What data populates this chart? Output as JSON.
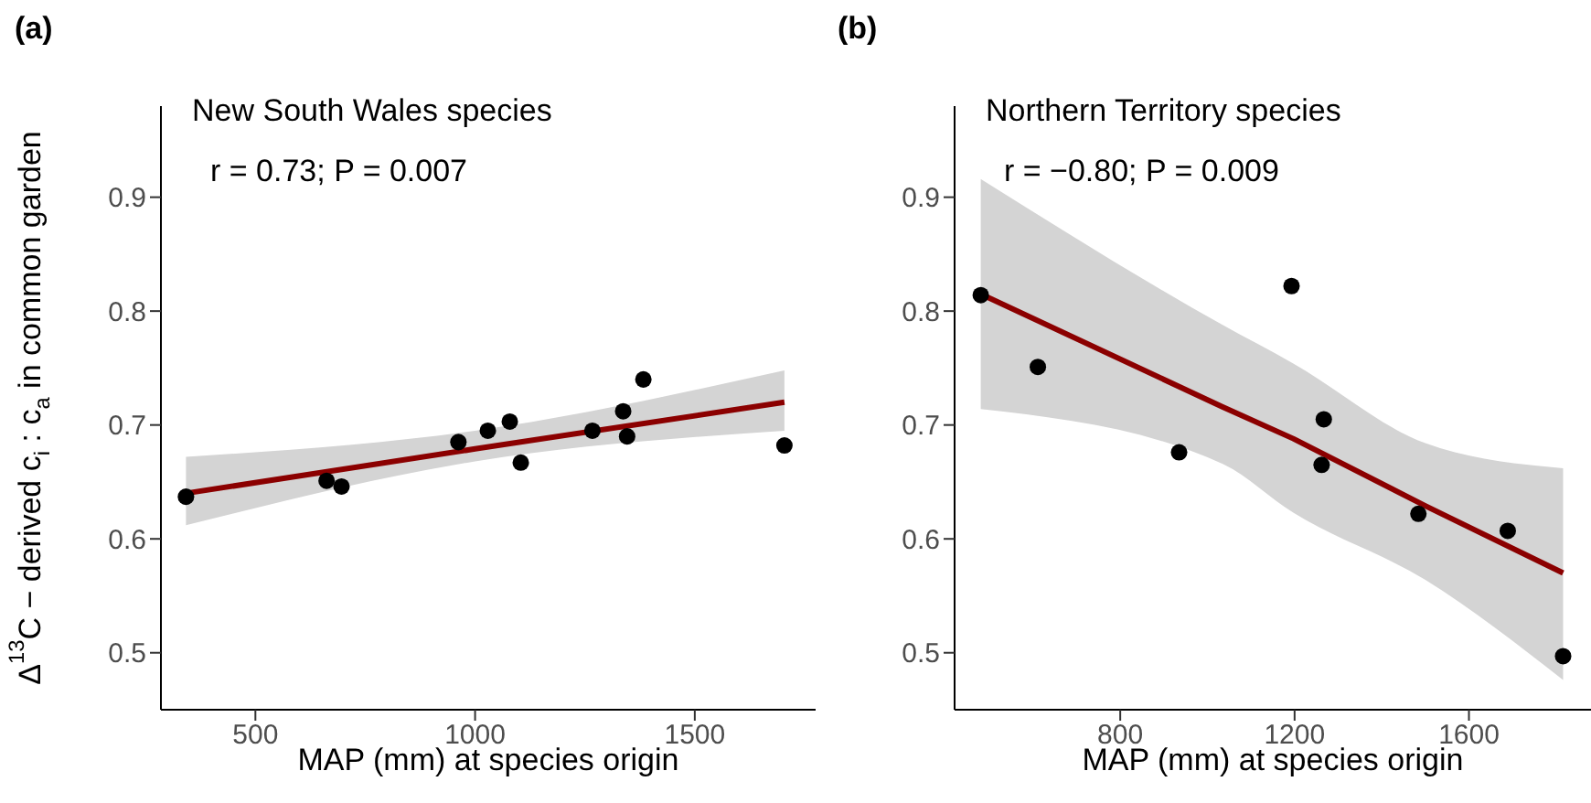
{
  "chart_data": [
    {
      "type": "scatter",
      "title": "New South Wales species",
      "xlabel": "MAP (mm) at species origin",
      "ylabel": "Δ$^{13}$C − derived c$_{i}$ : c$_{a}$ in common garden",
      "annotations": [
        "(a)",
        "r = 0.73; P = 0.007"
      ],
      "xlim": [
        285,
        1775
      ],
      "ylim": [
        0.45,
        0.98
      ],
      "xticks": [
        500,
        1000,
        1500
      ],
      "yticks": [
        0.5,
        0.6,
        0.7,
        0.8,
        0.9
      ],
      "grid": false,
      "marker": "circle",
      "series": [
        {
          "color": "#000000",
          "x": [
            342,
            662,
            696,
            962,
            1029,
            1079,
            1104,
            1267,
            1337,
            1346,
            1383,
            1704
          ],
          "values": [
            0.637,
            0.651,
            0.646,
            0.685,
            0.695,
            0.703,
            0.667,
            0.695,
            0.712,
            0.69,
            0.74,
            0.682
          ]
        },
        {
          "type": "line",
          "marker": "none",
          "color": "#8b0000",
          "x": [
            342,
            1000,
            1704
          ],
          "values": [
            0.64,
            0.679,
            0.72
          ],
          "lower": [
            0.612,
            0.668,
            0.695
          ],
          "upper": [
            0.672,
            0.695,
            0.748
          ]
        }
      ]
    },
    {
      "type": "scatter",
      "title": "Northern Territory species",
      "xlabel": "MAP (mm) at species origin",
      "annotations": [
        "(b)",
        "r = −0.80; P = 0.009"
      ],
      "xlim": [
        420,
        1880
      ],
      "ylim": [
        0.45,
        0.98
      ],
      "xticks": [
        800,
        1200,
        1600
      ],
      "yticks": [
        0.5,
        0.6,
        0.7,
        0.8,
        0.9
      ],
      "grid": false,
      "marker": "circle",
      "series": [
        {
          "color": "#000000",
          "x": [
            480,
            611,
            935,
            1193,
            1267,
            1262,
            1484,
            1689,
            1816
          ],
          "values": [
            0.814,
            0.751,
            0.676,
            0.822,
            0.705,
            0.665,
            0.622,
            0.607,
            0.497
          ]
        },
        {
          "type": "line",
          "marker": "none",
          "color": "#8b0000",
          "x": [
            480,
            1034,
            1197,
            1500,
            1816
          ],
          "values": [
            0.815,
            0.716,
            0.688,
            0.629,
            0.57
          ],
          "lower": [
            0.714,
            0.666,
            0.623,
            0.564,
            0.476
          ],
          "upper": [
            0.916,
            0.788,
            0.754,
            0.684,
            0.662
          ]
        }
      ]
    }
  ]
}
